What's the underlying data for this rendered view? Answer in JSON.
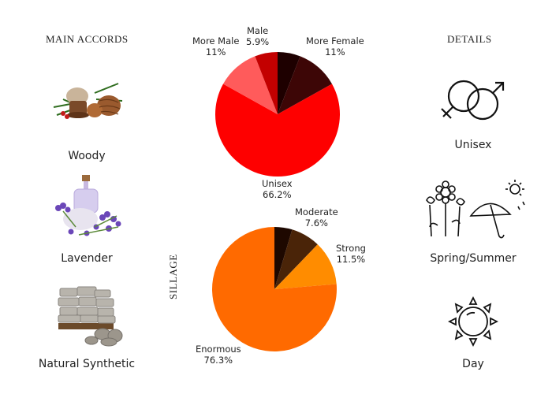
{
  "main_accords": {
    "title": "MAIN ACCORDS",
    "items": [
      {
        "label": "Woody",
        "icon": "pine-cone-bottle-icon"
      },
      {
        "label": "Lavender",
        "icon": "lavender-bottle-icon"
      },
      {
        "label": "Natural Synthetic",
        "icon": "stones-icon"
      }
    ]
  },
  "details": {
    "title": "DETAILS",
    "items": [
      {
        "label": "Unisex",
        "icon": "gender-symbols-icon"
      },
      {
        "label": "Spring/Summer",
        "icon": "flowers-umbrella-sun-icon"
      },
      {
        "label": "Day",
        "icon": "sun-icon"
      }
    ]
  },
  "chart_data": [
    {
      "type": "pie",
      "title": "",
      "slices": [
        {
          "label": "More Female",
          "value": 11,
          "display": "11%",
          "color": "#3d0606"
        },
        {
          "label": "Unisex",
          "value": 66.2,
          "display": "66.2%",
          "color": "#fe0000"
        },
        {
          "label": "More Male",
          "value": 11,
          "display": "11%",
          "color": "#ff5b5b"
        },
        {
          "label": "Male",
          "value": 5.9,
          "display": "5.9%",
          "color": "#c30000"
        }
      ],
      "extra_slice": {
        "value": 5.9,
        "color": "#1e0000"
      }
    },
    {
      "type": "pie",
      "title": "SILLAGE",
      "slices": [
        {
          "label": "Moderate",
          "value": 7.6,
          "display": "7.6%",
          "color": "#4a2408"
        },
        {
          "label": "Strong",
          "value": 11.5,
          "display": "11.5%",
          "color": "#ff8c00"
        },
        {
          "label": "Enormous",
          "value": 76.3,
          "display": "76.3%",
          "color": "#ff6a00"
        }
      ],
      "extra_slice": {
        "value": 4.6,
        "color": "#1e0800"
      }
    }
  ]
}
